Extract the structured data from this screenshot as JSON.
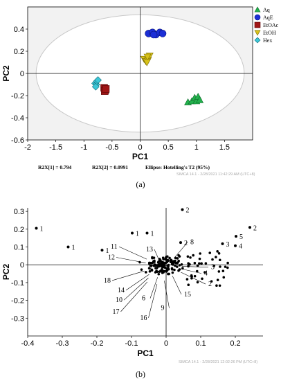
{
  "chart_data": [
    {
      "type": "scatter",
      "panel_label": "(a)",
      "xlabel": "PC1",
      "ylabel": "PC2",
      "xlim": [
        -2,
        2
      ],
      "ylim": [
        -0.6,
        0.6
      ],
      "xticks": [
        "-2",
        "-1.5",
        "-1",
        "-0.5",
        "0",
        "0.5",
        "1",
        "1.5"
      ],
      "yticks": [
        "-0.6",
        "-0.4",
        "-0.2",
        "0",
        "0.2",
        "0.4"
      ],
      "legend_position": "top-right",
      "ellipse": {
        "rx": 1.85,
        "ry": 0.53,
        "label": "Ellipse: Hotelling's T2 (95%)"
      },
      "footer": {
        "r2x1": "R2X[1] = 0.794",
        "r2x2": "R2X[2] = 0.0991",
        "watermark": "SIMCA 14.1 - 2/28/2021 11:42:29 AM (UTC+8)"
      },
      "series": [
        {
          "name": "Aq",
          "marker": "triangle-up",
          "color": "#22b14c",
          "stroke": "#0f6b2c",
          "points": [
            [
              0.85,
              -0.26
            ],
            [
              0.92,
              -0.25
            ],
            [
              0.97,
              -0.22
            ],
            [
              1.0,
              -0.25
            ],
            [
              1.03,
              -0.21
            ],
            [
              1.06,
              -0.24
            ]
          ]
        },
        {
          "name": "AqE",
          "marker": "circle",
          "color": "#1c2fd6",
          "stroke": "#0a1480",
          "points": [
            [
              0.15,
              0.36
            ],
            [
              0.22,
              0.37
            ],
            [
              0.28,
              0.35
            ],
            [
              0.35,
              0.37
            ],
            [
              0.4,
              0.36
            ],
            [
              0.24,
              0.35
            ]
          ]
        },
        {
          "name": "EtOAc",
          "marker": "square",
          "color": "#a01515",
          "stroke": "#5a0808",
          "points": [
            [
              -0.64,
              -0.13
            ],
            [
              -0.62,
              -0.15
            ],
            [
              -0.63,
              -0.16
            ],
            [
              -0.61,
              -0.14
            ]
          ]
        },
        {
          "name": "EtOH",
          "marker": "triangle-down",
          "color": "#d8c21a",
          "stroke": "#7a6c00",
          "points": [
            [
              0.07,
              0.13
            ],
            [
              0.1,
              0.11
            ],
            [
              0.14,
              0.12
            ],
            [
              0.17,
              0.16
            ],
            [
              0.13,
              0.15
            ],
            [
              0.12,
              0.1
            ]
          ]
        },
        {
          "name": "Hex",
          "marker": "diamond",
          "color": "#3cc6d6",
          "stroke": "#106a76",
          "points": [
            [
              -0.8,
              -0.09
            ],
            [
              -0.78,
              -0.1
            ],
            [
              -0.77,
              -0.07
            ],
            [
              -0.75,
              -0.06
            ],
            [
              -0.79,
              -0.12
            ]
          ]
        }
      ]
    },
    {
      "type": "scatter",
      "panel_label": "(b)",
      "xlabel": "PC1",
      "ylabel": "PC2",
      "xlim": [
        -0.4,
        0.28
      ],
      "ylim": [
        -0.4,
        0.32
      ],
      "xticks": [
        "-0.4",
        "-0.3",
        "-0.2",
        "-0.1",
        "0",
        "0.1",
        "0.2"
      ],
      "yticks": [
        "-0.3",
        "-0.2",
        "-0.1",
        "0",
        "0.1",
        "0.2",
        "0.3"
      ],
      "watermark": "SIMCA 14.1 - 2/28/2021 12:02:26 PM (UTC+8)",
      "labeled_points": [
        {
          "x": -0.375,
          "y": 0.205,
          "label": "1"
        },
        {
          "x": -0.283,
          "y": 0.1,
          "label": "1"
        },
        {
          "x": -0.185,
          "y": 0.082,
          "label": "1"
        },
        {
          "x": -0.098,
          "y": 0.178,
          "label": "1"
        },
        {
          "x": -0.055,
          "y": 0.178,
          "label": "1"
        },
        {
          "x": 0.047,
          "y": 0.31,
          "label": "2"
        },
        {
          "x": 0.242,
          "y": 0.21,
          "label": "2"
        },
        {
          "x": 0.042,
          "y": 0.125,
          "label": "2"
        },
        {
          "x": 0.202,
          "y": 0.16,
          "label": "5"
        },
        {
          "x": 0.2,
          "y": 0.107,
          "label": "4"
        },
        {
          "x": 0.163,
          "y": 0.118,
          "label": "3"
        }
      ],
      "annotations": [
        {
          "label": "11",
          "x": -0.16,
          "y": 0.09
        },
        {
          "label": "13",
          "x": -0.058,
          "y": 0.075
        },
        {
          "label": "12",
          "x": -0.168,
          "y": 0.03
        },
        {
          "label": "8",
          "x": 0.07,
          "y": 0.115
        },
        {
          "label": "18",
          "x": -0.18,
          "y": -0.1
        },
        {
          "label": "7",
          "x": -0.05,
          "y": -0.03
        },
        {
          "label": "14",
          "x": -0.14,
          "y": -0.155
        },
        {
          "label": "10",
          "x": -0.146,
          "y": -0.21
        },
        {
          "label": "6",
          "x": -0.07,
          "y": -0.2
        },
        {
          "label": "9",
          "x": -0.015,
          "y": -0.255
        },
        {
          "label": "17",
          "x": -0.155,
          "y": -0.275
        },
        {
          "label": "16",
          "x": -0.075,
          "y": -0.31
        },
        {
          "label": "15",
          "x": 0.052,
          "y": -0.178
        },
        {
          "label": "2",
          "x": 0.122,
          "y": -0.12
        },
        {
          "label": "3",
          "x": 0.13,
          "y": -0.025
        },
        {
          "label": "4",
          "x": 0.11,
          "y": -0.06
        }
      ]
    }
  ]
}
